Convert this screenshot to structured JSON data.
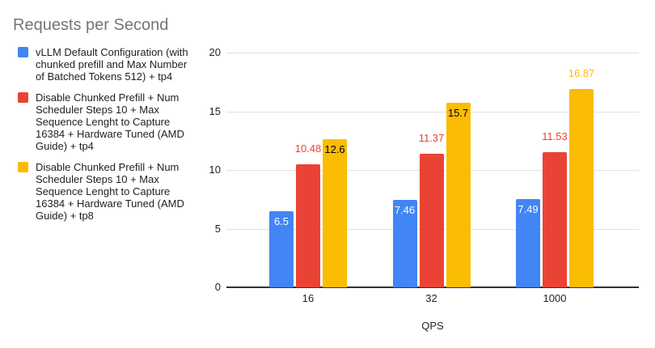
{
  "title": {
    "text": "Requests per Second",
    "color": "#757575"
  },
  "legend": {
    "position": "left",
    "items": [
      {
        "label": "vLLM Default Configuration (with\nchunked prefill and Max Number\nof Batched Tokens 512) + tp4",
        "color": "#4285F4"
      },
      {
        "label": "Disable Chunked Prefill + Num\nScheduler Steps 10 + Max\nSequence Lenght to Capture\n16384 + Hardware Tuned (AMD\nGuide) + tp4",
        "color": "#EA4335"
      },
      {
        "label": "Disable Chunked Prefill + Num\nScheduler Steps 10 + Max\nSequence Lenght to Capture\n16384 + Hardware Tuned (AMD\nGuide) + tp8",
        "color": "#FBBC04"
      }
    ]
  },
  "chart_data": {
    "type": "bar",
    "title": "Requests per Second",
    "categories": [
      "16",
      "32",
      "1000"
    ],
    "series": [
      {
        "name": "vLLM Default Configuration (with chunked prefill and Max Number of Batched Tokens 512) + tp4",
        "color": "#4285F4",
        "values": [
          6.5,
          7.46,
          7.49
        ],
        "data_labels": [
          "6.5",
          "7.46",
          "7.49"
        ],
        "label_placement": [
          "inside",
          "inside",
          "inside"
        ],
        "label_colors": [
          "#ffffff",
          "#ffffff",
          "#ffffff"
        ]
      },
      {
        "name": "Disable Chunked Prefill + Num Scheduler Steps 10 + Max Sequence Lenght to Capture 16384 + Hardware Tuned (AMD Guide) + tp4",
        "color": "#EA4335",
        "values": [
          10.48,
          11.37,
          11.53
        ],
        "data_labels": [
          "10.48",
          "11.37",
          "11.53"
        ],
        "label_placement": [
          "outside",
          "outside",
          "outside"
        ],
        "label_colors": [
          "#EA4335",
          "#EA4335",
          "#EA4335"
        ]
      },
      {
        "name": "Disable Chunked Prefill + Num Scheduler Steps 10 + Max Sequence Lenght to Capture 16384 + Hardware Tuned (AMD Guide) + tp8",
        "color": "#FBBC04",
        "values": [
          12.6,
          15.7,
          16.87
        ],
        "data_labels": [
          "12.6",
          "15.7",
          "16.87"
        ],
        "label_placement": [
          "inside",
          "inside",
          "outside"
        ],
        "label_colors": [
          "#000000",
          "#000000",
          "#FBBC04"
        ]
      }
    ],
    "xlabel": "QPS",
    "ylabel": "",
    "ylim": [
      0,
      20
    ],
    "yticks": [
      0,
      5,
      10,
      15,
      20
    ],
    "grid": true,
    "legend_position": "left",
    "axis_colors": {
      "grid": "#e0e0e0",
      "baseline": "#333333",
      "tick_text": "#222222"
    }
  }
}
